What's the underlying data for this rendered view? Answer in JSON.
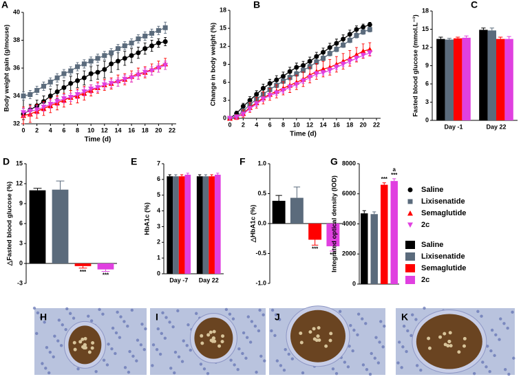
{
  "chart_data": [
    {
      "type": "line",
      "panel": "A",
      "ylabel": "Body weight gain (g/mouse)",
      "xlabel": "Time (d)",
      "x": [
        0,
        1,
        2,
        3,
        4,
        5,
        6,
        7,
        8,
        9,
        10,
        11,
        12,
        13,
        14,
        15,
        16,
        17,
        18,
        19,
        20,
        21
      ],
      "xlim": [
        0,
        22
      ],
      "xticks": [
        0,
        2,
        4,
        6,
        8,
        10,
        12,
        14,
        16,
        18,
        20,
        22
      ],
      "ylim": [
        32,
        40
      ],
      "yticks": [
        32,
        34,
        36,
        38,
        40
      ],
      "series": [
        {
          "name": "Saline",
          "color": "#000000",
          "marker": "circle",
          "values": [
            32.7,
            33.0,
            33.3,
            33.6,
            34.0,
            34.3,
            34.6,
            34.9,
            35.1,
            35.3,
            35.6,
            35.7,
            35.9,
            36.3,
            36.5,
            36.7,
            36.9,
            37.1,
            37.4,
            37.6,
            37.8,
            37.9
          ],
          "errors": [
            0.4,
            0.4,
            0.4,
            0.4,
            0.5,
            0.5,
            0.5,
            0.5,
            0.5,
            0.5,
            0.5,
            0.5,
            0.6,
            0.6,
            0.6,
            0.5,
            0.5,
            0.4,
            0.4,
            0.4,
            0.3,
            0.3
          ]
        },
        {
          "name": "Lixisenatide",
          "color": "#5b6b7c",
          "marker": "square",
          "values": [
            34.0,
            34.1,
            34.4,
            34.7,
            35.0,
            35.3,
            35.6,
            35.8,
            36.1,
            36.3,
            36.5,
            36.7,
            36.9,
            37.1,
            37.4,
            37.6,
            37.8,
            38.1,
            38.3,
            38.5,
            38.7,
            38.9
          ],
          "errors": [
            0.3,
            0.3,
            0.3,
            0.3,
            0.3,
            0.3,
            0.3,
            0.3,
            0.3,
            0.3,
            0.3,
            0.3,
            0.3,
            0.3,
            0.3,
            0.3,
            0.3,
            0.3,
            0.3,
            0.3,
            0.3,
            0.4
          ]
        },
        {
          "name": "Semaglutide",
          "color": "#ff0000",
          "marker": "triangle",
          "values": [
            32.6,
            32.7,
            32.9,
            33.1,
            33.3,
            33.5,
            33.7,
            33.9,
            34.0,
            34.2,
            34.4,
            34.6,
            34.8,
            34.9,
            35.1,
            35.2,
            35.4,
            35.6,
            35.7,
            35.9,
            36.1,
            36.3
          ],
          "errors": [
            0.6,
            0.6,
            0.5,
            0.5,
            0.5,
            0.5,
            0.5,
            0.5,
            0.5,
            0.5,
            0.4,
            0.4,
            0.4,
            0.4,
            0.4,
            0.4,
            0.4,
            0.4,
            0.4,
            0.4,
            0.4,
            0.4
          ]
        },
        {
          "name": "2c",
          "color": "#e040e0",
          "marker": "triangle-down",
          "values": [
            32.8,
            32.9,
            33.0,
            33.2,
            33.4,
            33.6,
            33.8,
            33.9,
            34.1,
            34.3,
            34.5,
            34.6,
            34.8,
            34.9,
            35.0,
            35.2,
            35.3,
            35.5,
            35.7,
            35.8,
            36.0,
            36.2
          ],
          "errors": [
            0.3,
            0.3,
            0.3,
            0.3,
            0.3,
            0.3,
            0.3,
            0.3,
            0.3,
            0.3,
            0.3,
            0.3,
            0.3,
            0.3,
            0.3,
            0.3,
            0.3,
            0.3,
            0.3,
            0.3,
            0.3,
            0.3
          ]
        }
      ]
    },
    {
      "type": "line",
      "panel": "B",
      "ylabel": "Change in body weight (%)",
      "xlabel": "Time (d)",
      "x": [
        0,
        1,
        2,
        3,
        4,
        5,
        6,
        7,
        8,
        9,
        10,
        11,
        12,
        13,
        14,
        15,
        16,
        17,
        18,
        19,
        20,
        21
      ],
      "xlim": [
        0,
        22
      ],
      "xticks": [
        0,
        2,
        4,
        6,
        8,
        10,
        12,
        14,
        16,
        18,
        20,
        22
      ],
      "ylim": [
        0,
        18
      ],
      "yticks": [
        0,
        3,
        6,
        9,
        12,
        15,
        18
      ],
      "series": [
        {
          "color": "#000000",
          "marker": "circle",
          "values": [
            0,
            0.8,
            2.0,
            3.0,
            4.0,
            5.0,
            5.8,
            6.4,
            7.0,
            7.8,
            8.5,
            8.8,
            9.5,
            10.3,
            11.0,
            11.8,
            12.5,
            13.2,
            14.0,
            14.8,
            15.2,
            15.6
          ],
          "errors": [
            0,
            0.4,
            0.5,
            0.6,
            0.6,
            0.7,
            0.7,
            0.7,
            0.7,
            0.7,
            0.7,
            0.7,
            0.7,
            0.7,
            0.7,
            0.7,
            0.7,
            0.7,
            0.7,
            0.6,
            0.5,
            0.4
          ]
        },
        {
          "color": "#5b6b7c",
          "marker": "square",
          "values": [
            0,
            0.3,
            1.2,
            2.3,
            3.2,
            4.0,
            4.8,
            5.5,
            6.2,
            6.8,
            7.4,
            8.0,
            8.6,
            9.4,
            10.0,
            10.8,
            11.5,
            12.2,
            13.0,
            13.8,
            14.4,
            14.8
          ],
          "errors": [
            0,
            0.3,
            0.4,
            0.4,
            0.4,
            0.4,
            0.4,
            0.4,
            0.4,
            0.4,
            0.4,
            0.4,
            0.4,
            0.4,
            0.4,
            0.4,
            0.4,
            0.4,
            0.4,
            0.4,
            0.4,
            0.4
          ]
        },
        {
          "color": "#ff0000",
          "marker": "triangle",
          "values": [
            0,
            0.2,
            0.8,
            1.8,
            2.6,
            3.4,
            4.0,
            4.5,
            5.0,
            5.5,
            6.0,
            6.5,
            7.2,
            7.8,
            8.2,
            8.5,
            9.0,
            9.5,
            10.0,
            10.6,
            11.2,
            11.5
          ],
          "errors": [
            0,
            0.4,
            0.6,
            0.8,
            0.9,
            1.0,
            1.0,
            1.1,
            1.1,
            1.2,
            1.2,
            1.2,
            1.3,
            1.3,
            1.3,
            1.3,
            1.3,
            1.3,
            1.3,
            1.2,
            1.2,
            1.1
          ]
        },
        {
          "color": "#e040e0",
          "marker": "triangle-down",
          "values": [
            0,
            0.2,
            0.7,
            1.6,
            2.4,
            3.2,
            3.8,
            4.2,
            4.6,
            5.2,
            5.6,
            6.2,
            6.8,
            7.4,
            7.6,
            8.0,
            8.5,
            9.0,
            9.5,
            10.0,
            10.5,
            10.9
          ],
          "errors": [
            0,
            0.3,
            0.3,
            0.4,
            0.4,
            0.4,
            0.4,
            0.4,
            0.4,
            0.4,
            0.4,
            0.4,
            0.4,
            0.4,
            0.4,
            0.4,
            0.4,
            0.4,
            0.4,
            0.4,
            0.4,
            0.4
          ]
        }
      ]
    },
    {
      "type": "bar",
      "panel": "C",
      "ylabel": "Fasted blood glucose (mmol.L⁻¹)",
      "categories": [
        "Day -1",
        "Day 22"
      ],
      "ylim": [
        0,
        18
      ],
      "yticks": [
        0,
        3,
        6,
        9,
        12,
        15,
        18
      ],
      "series": [
        {
          "name": "Saline",
          "color": "#000000",
          "values": [
            13.4,
            14.9
          ],
          "errors": [
            0.3,
            0.3
          ]
        },
        {
          "name": "Lixisenatide",
          "color": "#5b6b7c",
          "values": [
            13.3,
            14.8
          ],
          "errors": [
            0.2,
            0.4
          ]
        },
        {
          "name": "Semaglutide",
          "color": "#ff0000",
          "values": [
            13.5,
            13.4
          ],
          "errors": [
            0.2,
            0.3
          ]
        },
        {
          "name": "2c",
          "color": "#e040e0",
          "values": [
            13.6,
            13.4
          ],
          "errors": [
            0.3,
            0.4
          ]
        }
      ]
    },
    {
      "type": "bar",
      "panel": "D",
      "ylabel": "△Fasted blood glucose (%)",
      "categories": [
        null
      ],
      "ylim": [
        -3,
        15
      ],
      "yticks": [
        -3,
        0,
        3,
        6,
        9,
        12,
        15
      ],
      "series": [
        {
          "color": "#000000",
          "values": [
            11.0
          ],
          "errors": [
            0.3
          ]
        },
        {
          "color": "#5b6b7c",
          "values": [
            11.1
          ],
          "errors": [
            1.3
          ]
        },
        {
          "color": "#ff0000",
          "values": [
            -0.4
          ],
          "errors": [
            0.3
          ],
          "annotations": [
            "***"
          ]
        },
        {
          "color": "#e040e0",
          "values": [
            -0.9
          ],
          "errors": [
            0.3
          ],
          "annotations": [
            "***"
          ]
        }
      ]
    },
    {
      "type": "bar",
      "panel": "E",
      "ylabel": "HbA1c (%)",
      "categories": [
        "Day -7",
        "Day 22"
      ],
      "ylim": [
        0,
        7
      ],
      "yticks": [
        0,
        1,
        2,
        3,
        4,
        5,
        6,
        7
      ],
      "series": [
        {
          "color": "#000000",
          "values": [
            6.2,
            6.2
          ],
          "errors": [
            0.1,
            0.1
          ]
        },
        {
          "color": "#5b6b7c",
          "values": [
            6.2,
            6.2
          ],
          "errors": [
            0.1,
            0.1
          ]
        },
        {
          "color": "#ff0000",
          "values": [
            6.2,
            6.2
          ],
          "errors": [
            0.1,
            0.1
          ]
        },
        {
          "color": "#e040e0",
          "values": [
            6.3,
            6.3
          ],
          "errors": [
            0.1,
            0.1
          ]
        }
      ]
    },
    {
      "type": "bar",
      "panel": "F",
      "ylabel": "△HbA1c (%)",
      "categories": [
        null
      ],
      "ylim": [
        -1,
        1
      ],
      "yticks": [
        {
          "value": -1,
          "label": "-1.0"
        },
        -0.5,
        {
          "value": 0,
          "label": "0.0"
        },
        0.5,
        {
          "value": 1,
          "label": "1.0"
        }
      ],
      "series": [
        {
          "color": "#000000",
          "values": [
            0.38
          ],
          "errors": [
            0.09
          ]
        },
        {
          "color": "#5b6b7c",
          "values": [
            0.43
          ],
          "errors": [
            0.18
          ]
        },
        {
          "color": "#ff0000",
          "values": [
            -0.27
          ],
          "errors": [
            0.09
          ],
          "annotations": [
            "***"
          ]
        },
        {
          "color": "#e040e0",
          "values": [
            -0.38
          ],
          "errors": [
            0.08
          ],
          "annotations": [
            "***"
          ]
        }
      ]
    },
    {
      "type": "bar",
      "panel": "G",
      "ylabel": "Integrated optical density (IOD)",
      "categories": [
        null
      ],
      "ylim": [
        0,
        8000
      ],
      "yticks": [
        0,
        2000,
        4000,
        6000,
        8000
      ],
      "series": [
        {
          "color": "#000000",
          "values": [
            4700
          ],
          "errors": [
            180
          ]
        },
        {
          "color": "#5b6b7c",
          "values": [
            4650
          ],
          "errors": [
            150
          ]
        },
        {
          "color": "#ff0000",
          "values": [
            6600
          ],
          "errors": [
            130
          ],
          "annotations": [
            "***"
          ]
        },
        {
          "color": "#e040e0",
          "values": [
            6850
          ],
          "errors": [
            150
          ],
          "annotations": [
            "a",
            "***"
          ]
        }
      ]
    }
  ],
  "micrographs": [
    {
      "label": "H"
    },
    {
      "label": "I"
    },
    {
      "label": "J"
    },
    {
      "label": "K"
    }
  ]
}
